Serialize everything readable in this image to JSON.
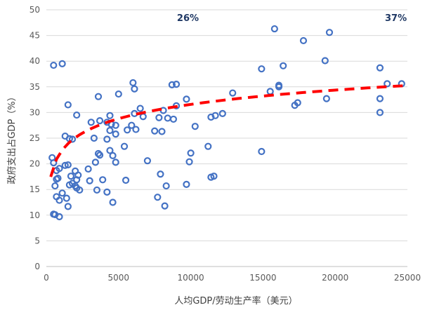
{
  "chart_data": {
    "type": "scatter",
    "xlabel": "人均GDP/劳动生产率（美元）",
    "ylabel": "政府支出占GDP（%）",
    "xlim": [
      0,
      25000
    ],
    "ylim": [
      0,
      50
    ],
    "x_ticks": [
      0,
      5000,
      10000,
      15000,
      20000,
      25000
    ],
    "y_ticks": [
      0,
      5,
      10,
      15,
      20,
      25,
      30,
      35,
      40,
      45,
      50
    ],
    "grid": "horizontal",
    "annotations": [
      {
        "text": "26%",
        "x": 9800,
        "y": 47.8
      },
      {
        "text": "37%",
        "x": 24200,
        "y": 47.8
      }
    ],
    "points": [
      [
        500,
        39.2
      ],
      [
        1100,
        39.5
      ],
      [
        1500,
        31.5
      ],
      [
        2100,
        29.5
      ],
      [
        3600,
        33.1
      ],
      [
        400,
        21.2
      ],
      [
        500,
        20.2
      ],
      [
        900,
        19.1
      ],
      [
        700,
        18.7
      ],
      [
        1300,
        19.7
      ],
      [
        1500,
        19.8
      ],
      [
        700,
        17.0
      ],
      [
        800,
        17.2
      ],
      [
        600,
        15.7
      ],
      [
        700,
        13.6
      ],
      [
        1100,
        14.3
      ],
      [
        900,
        12.9
      ],
      [
        1400,
        13.3
      ],
      [
        1500,
        11.7
      ],
      [
        500,
        10.2
      ],
      [
        600,
        10.1
      ],
      [
        900,
        9.7
      ],
      [
        1300,
        25.4
      ],
      [
        1600,
        24.9
      ],
      [
        1800,
        24.8
      ],
      [
        1700,
        17.6
      ],
      [
        2000,
        18.6
      ],
      [
        2200,
        17.8
      ],
      [
        1800,
        16.2
      ],
      [
        2100,
        16.9
      ],
      [
        1600,
        15.9
      ],
      [
        2000,
        15.7
      ],
      [
        2300,
        14.9
      ],
      [
        2100,
        15.3
      ],
      [
        2900,
        19.0
      ],
      [
        3000,
        16.7
      ],
      [
        3400,
        20.3
      ],
      [
        3500,
        14.9
      ],
      [
        3700,
        21.7
      ],
      [
        3100,
        28.1
      ],
      [
        3700,
        28.4
      ],
      [
        3300,
        25.0
      ],
      [
        3600,
        22.0
      ],
      [
        3900,
        16.9
      ],
      [
        4200,
        14.5
      ],
      [
        4200,
        28.1
      ],
      [
        4400,
        29.4
      ],
      [
        4400,
        26.5
      ],
      [
        4500,
        27.7
      ],
      [
        4800,
        27.5
      ],
      [
        4800,
        25.8
      ],
      [
        4200,
        24.8
      ],
      [
        4400,
        22.6
      ],
      [
        4600,
        21.6
      ],
      [
        4800,
        20.3
      ],
      [
        4600,
        12.5
      ],
      [
        5000,
        33.6
      ],
      [
        5400,
        23.4
      ],
      [
        5500,
        16.8
      ],
      [
        5600,
        26.6
      ],
      [
        5900,
        27.5
      ],
      [
        6200,
        26.7
      ],
      [
        6000,
        35.8
      ],
      [
        6100,
        34.6
      ],
      [
        6100,
        29.8
      ],
      [
        6500,
        30.8
      ],
      [
        6700,
        29.2
      ],
      [
        7000,
        20.6
      ],
      [
        7500,
        26.4
      ],
      [
        7700,
        13.5
      ],
      [
        7800,
        29.0
      ],
      [
        7900,
        18.0
      ],
      [
        8000,
        26.3
      ],
      [
        8100,
        30.4
      ],
      [
        8200,
        11.8
      ],
      [
        8300,
        15.7
      ],
      [
        8400,
        28.9
      ],
      [
        8700,
        35.4
      ],
      [
        8800,
        28.7
      ],
      [
        9000,
        31.3
      ],
      [
        9000,
        35.5
      ],
      [
        9700,
        32.6
      ],
      [
        9700,
        16.0
      ],
      [
        9900,
        20.4
      ],
      [
        10000,
        22.1
      ],
      [
        10300,
        27.3
      ],
      [
        11200,
        23.4
      ],
      [
        11400,
        17.4
      ],
      [
        11600,
        17.6
      ],
      [
        11400,
        29.1
      ],
      [
        11700,
        29.4
      ],
      [
        12200,
        29.8
      ],
      [
        12900,
        33.8
      ],
      [
        14900,
        38.5
      ],
      [
        14900,
        22.4
      ],
      [
        15500,
        34.1
      ],
      [
        15800,
        46.3
      ],
      [
        16100,
        35.0
      ],
      [
        16100,
        35.3
      ],
      [
        16400,
        39.1
      ],
      [
        17200,
        31.4
      ],
      [
        17400,
        31.9
      ],
      [
        17800,
        44.0
      ],
      [
        19300,
        40.1
      ],
      [
        19400,
        32.7
      ],
      [
        19600,
        45.6
      ],
      [
        23100,
        38.7
      ],
      [
        23100,
        32.7
      ],
      [
        23100,
        30.0
      ],
      [
        23600,
        35.6
      ],
      [
        24600,
        35.6
      ]
    ],
    "trendline": {
      "type": "logarithmic",
      "x_start": 300,
      "x_end": 24700,
      "a": 4.02,
      "b": -5.45
    }
  }
}
